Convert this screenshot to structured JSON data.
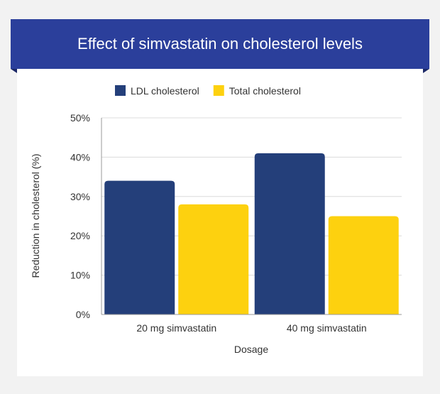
{
  "chart_data": {
    "type": "bar",
    "title": "Effect of simvastatin on cholesterol levels",
    "xlabel": "Dosage",
    "ylabel": "Reduction in cholesterol (%)",
    "categories": [
      "20 mg simvastatin",
      "40 mg simvastatin"
    ],
    "series": [
      {
        "name": "LDL cholesterol",
        "values": [
          34,
          41
        ],
        "color": "#243f7a"
      },
      {
        "name": "Total cholesterol",
        "values": [
          28,
          25
        ],
        "color": "#fdd10f"
      }
    ],
    "ylim": [
      0,
      50
    ],
    "yticks": [
      0,
      10,
      20,
      30,
      40,
      50
    ],
    "ytick_format": "{v}%",
    "grid": true,
    "legend": "top-center"
  }
}
